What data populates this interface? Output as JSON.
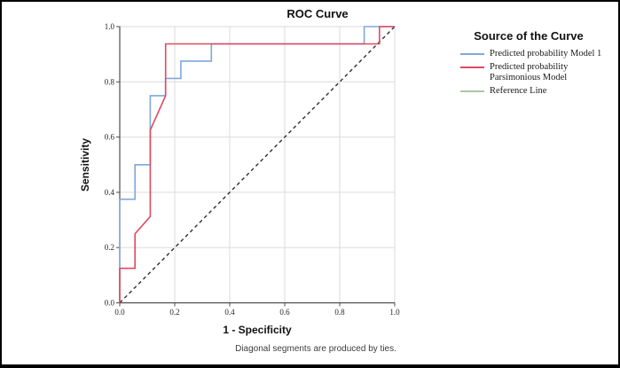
{
  "chart_data": {
    "type": "line",
    "title": "ROC Curve",
    "xlabel": "1 - Specificity",
    "ylabel": "Sensitivity",
    "xlim": [
      0,
      1
    ],
    "ylim": [
      0,
      1
    ],
    "x_ticks": [
      "0.0",
      "0.2",
      "0.4",
      "0.6",
      "0.8",
      "1.0"
    ],
    "y_ticks": [
      "0.0",
      "0.2",
      "0.4",
      "0.6",
      "0.8",
      "1.0"
    ],
    "grid": true,
    "legend_title": "Source of the Curve",
    "legend_position": "right",
    "caption": "Diagonal segments are produced by ties.",
    "colors": {
      "gridline": "#dbdbdb",
      "axis": "#4d4d4d",
      "tick_text": "#262626"
    },
    "series": [
      {
        "name": "Predicted probability Model 1",
        "color": "#7fa8dc",
        "style": "solid",
        "points": [
          [
            0,
            0
          ],
          [
            0,
            0.375
          ],
          [
            0.0556,
            0.375
          ],
          [
            0.0556,
            0.5
          ],
          [
            0.1111,
            0.5
          ],
          [
            0.1111,
            0.75
          ],
          [
            0.1667,
            0.75
          ],
          [
            0.1667,
            0.8125
          ],
          [
            0.2222,
            0.8125
          ],
          [
            0.2222,
            0.875
          ],
          [
            0.3333,
            0.875
          ],
          [
            0.3333,
            0.9375
          ],
          [
            0.8889,
            0.9375
          ],
          [
            0.8889,
            1
          ],
          [
            1,
            1
          ]
        ]
      },
      {
        "name": "Predicted probability Parsimonious Model",
        "color": "#e04a5e",
        "style": "solid",
        "points": [
          [
            0,
            0
          ],
          [
            0,
            0.125
          ],
          [
            0.0556,
            0.125
          ],
          [
            0.0556,
            0.25
          ],
          [
            0.1111,
            0.3125
          ],
          [
            0.1111,
            0.625
          ],
          [
            0.1667,
            0.75
          ],
          [
            0.1667,
            0.9375
          ],
          [
            0.9444,
            0.9375
          ],
          [
            0.9444,
            1
          ],
          [
            1,
            1
          ]
        ]
      },
      {
        "name": "Reference Line",
        "color": "#abc7a4",
        "line_color": "#2e2e2e",
        "style": "dashed",
        "points": [
          [
            0,
            0
          ],
          [
            1,
            1
          ]
        ]
      }
    ]
  }
}
